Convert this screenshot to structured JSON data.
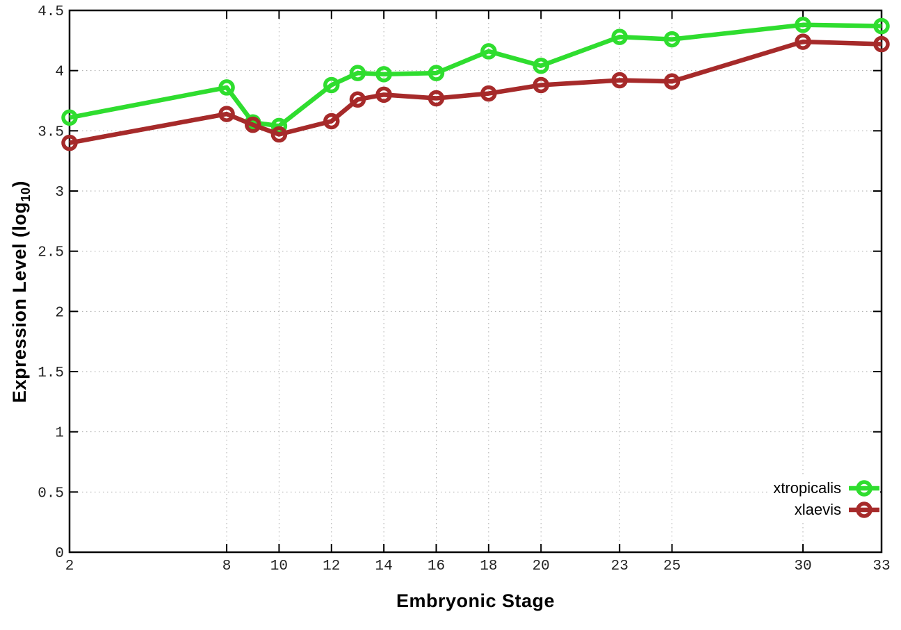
{
  "chart_data": {
    "type": "line",
    "title": "",
    "xlabel": "Embryonic Stage",
    "ylabel": "Expression Level (log10)",
    "ylabel_display": {
      "prefix": "Expression Level (log",
      "subscript": "10",
      "suffix": ")"
    },
    "x": [
      2,
      8,
      9,
      10,
      12,
      13,
      14,
      16,
      18,
      20,
      23,
      25,
      30,
      33
    ],
    "series": [
      {
        "name": "xtropicalis",
        "color": "#2fdd2f",
        "values": [
          3.61,
          3.86,
          3.57,
          3.54,
          3.88,
          3.98,
          3.97,
          3.98,
          4.16,
          4.04,
          4.28,
          4.26,
          4.38,
          4.37
        ]
      },
      {
        "name": "xlaevis",
        "color": "#a62a2a",
        "values": [
          3.4,
          3.64,
          3.55,
          3.47,
          3.58,
          3.76,
          3.8,
          3.77,
          3.81,
          3.88,
          3.92,
          3.91,
          4.24,
          4.22
        ]
      }
    ],
    "xlim": [
      2,
      33
    ],
    "ylim": [
      0,
      4.5
    ],
    "xtick_values": [
      2,
      8,
      10,
      12,
      14,
      16,
      18,
      20,
      23,
      25,
      30,
      33
    ],
    "xtick_labels": [
      "2",
      "8",
      "10",
      "12",
      "14",
      "16",
      "18",
      "20",
      "23",
      "25",
      "30",
      "33"
    ],
    "ytick_values": [
      0,
      0.5,
      1,
      1.5,
      2,
      2.5,
      3,
      3.5,
      4,
      4.5
    ],
    "ytick_labels": [
      "0",
      "0.5",
      "1",
      "1.5",
      "2",
      "2.5",
      "3",
      "3.5",
      "4",
      "4.5"
    ],
    "grid": true,
    "legend_position": "bottom-right"
  },
  "colors": {
    "background": "#ffffff",
    "grid": "#aaaaaa",
    "axis": "#000000",
    "tick_text": "#222222"
  }
}
